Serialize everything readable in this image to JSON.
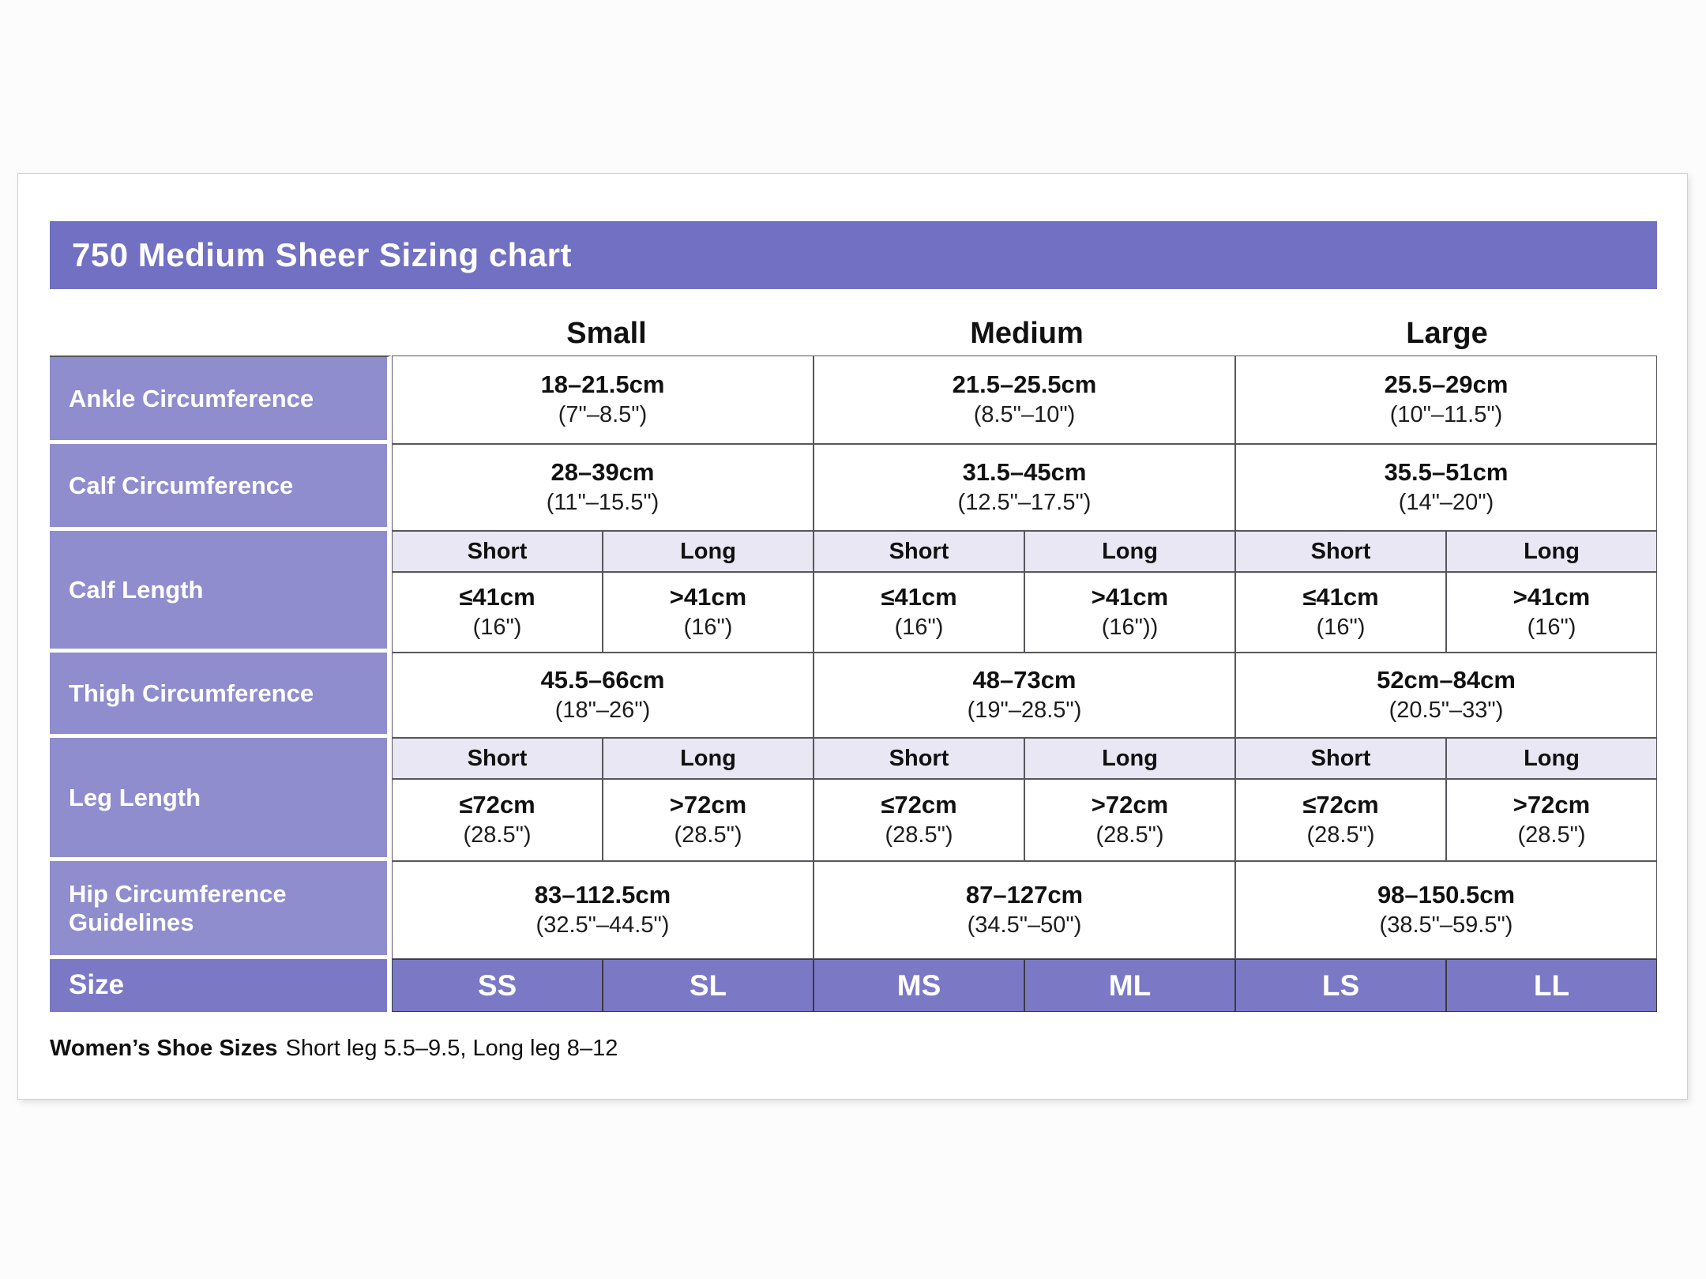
{
  "colors": {
    "title_bar": "#7170c2",
    "row_label": "#8f8dce",
    "size_row": "#7b79c6",
    "subheader_bg": "#e8e7f3",
    "grid_border": "#56565c",
    "card_bg": "#ffffff"
  },
  "chart_data": {
    "type": "table",
    "title": "750 Medium Sheer Sizing chart",
    "group_headers": [
      "Small",
      "Medium",
      "Large"
    ],
    "rows": [
      {
        "label": "Ankle Circumference",
        "layout": "merged",
        "cells": [
          {
            "cm": "18–21.5cm",
            "inch": "(7\"–8.5\")"
          },
          {
            "cm": "21.5–25.5cm",
            "inch": "(8.5\"–10\")"
          },
          {
            "cm": "25.5–29cm",
            "inch": "(10\"–11.5\")"
          }
        ]
      },
      {
        "label": "Calf Circumference",
        "layout": "merged",
        "cells": [
          {
            "cm": "28–39cm",
            "inch": "(11\"–15.5\")"
          },
          {
            "cm": "31.5–45cm",
            "inch": "(12.5\"–17.5\")"
          },
          {
            "cm": "35.5–51cm",
            "inch": "(14\"–20\")"
          }
        ]
      },
      {
        "label": "Calf Length",
        "layout": "short-long",
        "subheaders": [
          "Short",
          "Long",
          "Short",
          "Long",
          "Short",
          "Long"
        ],
        "cells": [
          {
            "cm": "≤41cm",
            "inch": "(16\")"
          },
          {
            "cm": ">41cm",
            "inch": "(16\")"
          },
          {
            "cm": "≤41cm",
            "inch": "(16\")"
          },
          {
            "cm": ">41cm",
            "inch": "(16\"))"
          },
          {
            "cm": "≤41cm",
            "inch": "(16\")"
          },
          {
            "cm": ">41cm",
            "inch": "(16\")"
          }
        ]
      },
      {
        "label": "Thigh Circumference",
        "layout": "merged",
        "cells": [
          {
            "cm": "45.5–66cm",
            "inch": "(18\"–26\")"
          },
          {
            "cm": "48–73cm",
            "inch": "(19\"–28.5\")"
          },
          {
            "cm": "52cm–84cm",
            "inch": "(20.5\"–33\")"
          }
        ]
      },
      {
        "label": "Leg Length",
        "layout": "short-long",
        "subheaders": [
          "Short",
          "Long",
          "Short",
          "Long",
          "Short",
          "Long"
        ],
        "cells": [
          {
            "cm": "≤72cm",
            "inch": "(28.5\")"
          },
          {
            "cm": ">72cm",
            "inch": "(28.5\")"
          },
          {
            "cm": "≤72cm",
            "inch": "(28.5\")"
          },
          {
            "cm": ">72cm",
            "inch": "(28.5\")"
          },
          {
            "cm": "≤72cm",
            "inch": "(28.5\")"
          },
          {
            "cm": ">72cm",
            "inch": "(28.5\")"
          }
        ]
      },
      {
        "label": "Hip Circumference Guidelines",
        "layout": "merged",
        "cells": [
          {
            "cm": "83–112.5cm",
            "inch": "(32.5\"–44.5\")"
          },
          {
            "cm": "87–127cm",
            "inch": "(34.5\"–50\")"
          },
          {
            "cm": "98–150.5cm",
            "inch": "(38.5\"–59.5\")"
          }
        ]
      },
      {
        "label": "Size",
        "layout": "size",
        "cells": [
          "SS",
          "SL",
          "MS",
          "ML",
          "LS",
          "LL"
        ]
      }
    ],
    "footnote": {
      "bold": "Women’s Shoe Sizes",
      "text": "Short leg 5.5–9.5, Long leg 8–12"
    }
  }
}
